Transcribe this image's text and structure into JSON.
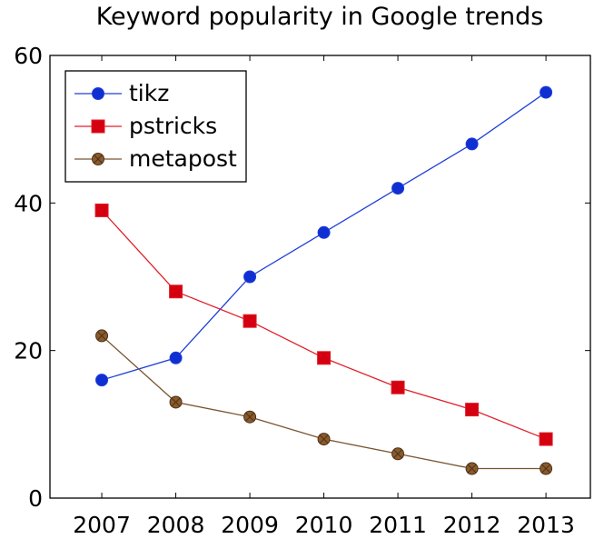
{
  "chart_data": {
    "type": "line",
    "title": "Keyword popularity in Google trends",
    "xlabel": "",
    "ylabel": "",
    "x": [
      2007,
      2008,
      2009,
      2010,
      2011,
      2012,
      2013
    ],
    "x_tick_labels": [
      "2007",
      "2008",
      "2009",
      "2010",
      "2011",
      "2012",
      "2013"
    ],
    "xlim": [
      2006.3,
      2013.6
    ],
    "ylim": [
      0,
      60
    ],
    "y_ticks": [
      0,
      20,
      40,
      60
    ],
    "y_tick_labels": [
      "0",
      "20",
      "40",
      "60"
    ],
    "grid": false,
    "legend_position": "top-left",
    "series": [
      {
        "name": "tikz",
        "marker": "circle",
        "color": "#1f3fd9",
        "fill": "#0f2fd2",
        "values": [
          16,
          19,
          30,
          36,
          42,
          48,
          55
        ]
      },
      {
        "name": "pstricks",
        "marker": "square",
        "color": "#e0202a",
        "fill": "#d40010",
        "values": [
          39,
          28,
          24,
          19,
          15,
          12,
          8
        ]
      },
      {
        "name": "metapost",
        "marker": "crossed-circle",
        "color": "#7a5530",
        "fill": "#8a5a2b",
        "values": [
          22,
          13,
          11,
          8,
          6,
          4,
          4
        ]
      }
    ]
  }
}
